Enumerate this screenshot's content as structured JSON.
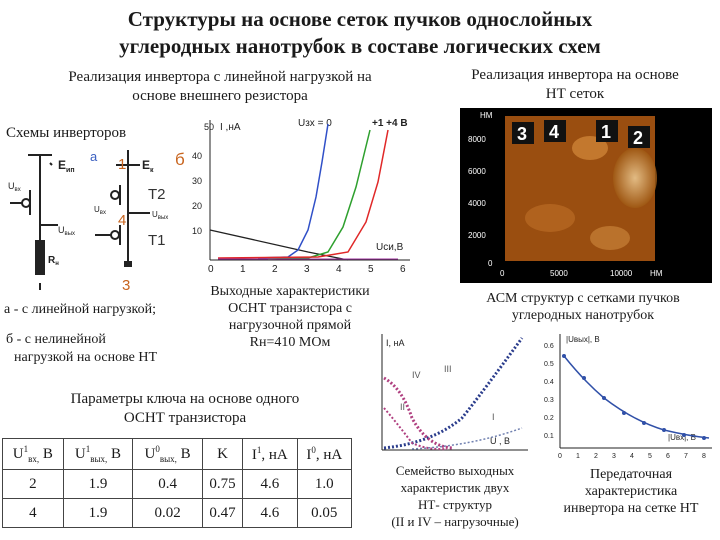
{
  "title": {
    "line1": "Структуры на основе сеток пучков однослойных",
    "line2": "углеродных нанотрубок в составе  логических схем"
  },
  "left_heading": {
    "line1": "Реализация инвертора с линейной нагрузкой на",
    "line2": "основе внешнего резистора"
  },
  "right_heading": {
    "line1": "Реализация инвертора на основе",
    "line2": "НТ сеток"
  },
  "schemes_label": "Схемы инверторов",
  "circuit": {
    "label_a": "а",
    "label_b": "б",
    "num1": "1",
    "num3": "3",
    "num4": "4",
    "t2": "Т2",
    "t1": "Т1",
    "e_ip": "Е",
    "e_ip_sub": "ип",
    "e_k": "Е",
    "e_k_sub": "к",
    "u_in": "U",
    "u_in_sub": "вх",
    "u_out": "U",
    "u_out_sub": "вых",
    "u_in2_sub": "вх",
    "u_out2_sub": "вых",
    "r_n": "R",
    "r_n_sub": "н"
  },
  "caption_a": "а - с линейной нагрузкой;",
  "caption_b_line1": "б - с нелинейной",
  "caption_b_line2": "нагрузкой на основе НТ",
  "iv_chart": {
    "ylabel": "I ,нА",
    "y_prefix": "50",
    "ugate_label": "Uзх = 0",
    "ugate_max": "+1  +4 В",
    "xlabel": "Uси,В",
    "yticks": [
      "10",
      "20",
      "30",
      "40"
    ],
    "xticks": [
      "0",
      "1",
      "2",
      "3",
      "4",
      "5",
      "6"
    ]
  },
  "iv_caption": {
    "line1": "Выходные характеристики",
    "line2": "ОСНТ транзистора с",
    "line3": "нагрузочной прямой",
    "line4": "Rн=410 МОм"
  },
  "afm": {
    "unit_y": "НМ",
    "unit_x": "НМ",
    "yticks": [
      "8000",
      "6000",
      "4000",
      "2000",
      "0"
    ],
    "xticks": [
      "0",
      "5000",
      "10000"
    ],
    "regions": [
      "3",
      "4",
      "1",
      "2"
    ]
  },
  "afm_caption": {
    "line1": "АСМ  структур с сетками пучков",
    "line2": "углеродных нанотрубок"
  },
  "params_title": {
    "line1": "Параметры ключа на основе одного",
    "line2": "ОСНТ транзистора"
  },
  "params_table": {
    "headers": [
      {
        "main": "U",
        "sup": "1",
        "sub": "вх,",
        "tail": " В"
      },
      {
        "main": "U",
        "sup": "1",
        "sub": "вых,",
        "tail": " В"
      },
      {
        "main": "U",
        "sup": "0",
        "sub": "вых,",
        "tail": " В"
      },
      {
        "main": "K",
        "sup": "",
        "sub": "",
        "tail": ""
      },
      {
        "main": "I",
        "sup": "1",
        "sub": "",
        "tail": ", нА"
      },
      {
        "main": "I",
        "sup": "0",
        "sub": "",
        "tail": ", нА"
      }
    ],
    "rows": [
      [
        "2",
        "1.9",
        "0.4",
        "0.75",
        "4.6",
        "1.0"
      ],
      [
        "4",
        "1.9",
        "0.02",
        "0.47",
        "4.6",
        "0.05"
      ]
    ]
  },
  "family_chart": {
    "ylabel": "I, нА",
    "xlabel": "U , В",
    "curve_labels": [
      "I",
      "II",
      "III",
      "IV"
    ]
  },
  "family_caption": {
    "line1": "Семейство выходных",
    "line2": "характеристик двух",
    "line3": "НТ- структур",
    "line4": "(II и IV – нагрузочные)"
  },
  "transfer_chart": {
    "ylabel": "|Uвых|, В",
    "xlabel": "|Uвх|, В",
    "yticks": [
      "0.6",
      "0.5",
      "0.4",
      "0.3",
      "0.2",
      "0.1"
    ],
    "xticks": [
      "0",
      "1",
      "2",
      "3",
      "4",
      "5",
      "6",
      "7",
      "8"
    ]
  },
  "transfer_caption": {
    "line1": "Передаточная",
    "line2": "характеристика",
    "line3": "инвертора на сетке НТ"
  }
}
